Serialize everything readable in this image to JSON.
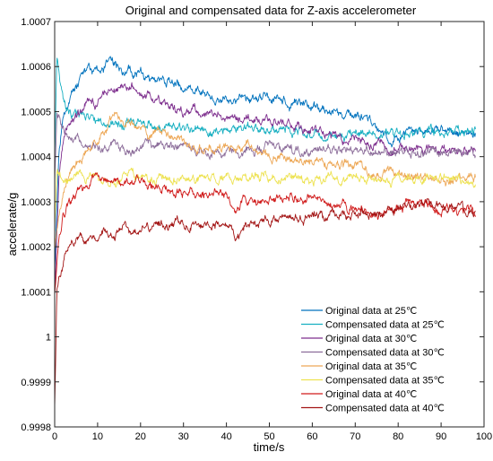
{
  "chart_data": {
    "type": "line",
    "title": "Original and compensated data for Z-axis accelerometer",
    "xlabel": "time/s",
    "ylabel": "accelerate/g",
    "xlim": [
      0,
      100
    ],
    "ylim": [
      0.9998,
      1.0007
    ],
    "xticks": [
      "0",
      "10",
      "20",
      "30",
      "40",
      "50",
      "60",
      "70",
      "80",
      "90",
      "100"
    ],
    "yticks": [
      "0.9998",
      "0.9999",
      "1",
      "1.0001",
      "1.0002",
      "1.0003",
      "1.0004",
      "1.0005",
      "1.0006",
      "1.0007"
    ],
    "grid": false,
    "legend_position": "bottom-right",
    "series": [
      {
        "name": "Original data at 25℃",
        "color": "#0072BD",
        "x": [
          0,
          1,
          2,
          3,
          4,
          6,
          8,
          10,
          12,
          14,
          16,
          18,
          20,
          22,
          25,
          28,
          30,
          35,
          40,
          45,
          50,
          55,
          60,
          65,
          70,
          75,
          78,
          80,
          85,
          90,
          95,
          98
        ],
        "y": [
          1.00015,
          1.00042,
          1.0005,
          1.00052,
          1.00054,
          1.00057,
          1.0006,
          1.00058,
          1.0006,
          1.00061,
          1.00058,
          1.00059,
          1.00058,
          1.00057,
          1.00057,
          1.00056,
          1.00055,
          1.00054,
          1.00053,
          1.00052,
          1.00053,
          1.00052,
          1.00051,
          1.0005,
          1.00049,
          1.00047,
          1.00044,
          1.00044,
          1.00046,
          1.00046,
          1.00045,
          1.00045
        ]
      },
      {
        "name": "Compensated data at 25℃",
        "color": "#17AFC1",
        "x": [
          0,
          0.5,
          1,
          1.5,
          2,
          3,
          4,
          5,
          6,
          8,
          10,
          12,
          14,
          16,
          18,
          20,
          25,
          30,
          35,
          40,
          45,
          50,
          55,
          60,
          65,
          70,
          75,
          80,
          85,
          90,
          95,
          98
        ],
        "y": [
          1.0004,
          1.00062,
          1.0006,
          1.00055,
          1.00052,
          1.0005,
          1.00049,
          1.00049,
          1.00049,
          1.00048,
          1.00048,
          1.00048,
          1.00047,
          1.00047,
          1.00048,
          1.00048,
          1.00047,
          1.00046,
          1.00046,
          1.00046,
          1.00046,
          1.00046,
          1.00046,
          1.00045,
          1.00045,
          1.00045,
          1.00045,
          1.00045,
          1.00046,
          1.00045,
          1.00045,
          1.00045
        ]
      },
      {
        "name": "Original data at 30℃",
        "color": "#7E2F8E",
        "x": [
          0,
          1,
          2,
          3,
          4,
          6,
          8,
          10,
          12,
          14,
          16,
          18,
          20,
          25,
          30,
          35,
          40,
          45,
          50,
          55,
          60,
          65,
          70,
          75,
          80,
          85,
          90,
          95,
          98
        ],
        "y": [
          1.0001,
          1.00035,
          1.00044,
          1.00046,
          1.00048,
          1.0005,
          1.00052,
          1.00052,
          1.00055,
          1.00055,
          1.00054,
          1.00055,
          1.00054,
          1.00052,
          1.0005,
          1.0005,
          1.00049,
          1.00048,
          1.00048,
          1.00047,
          1.00046,
          1.00045,
          1.00044,
          1.00043,
          1.00042,
          1.00042,
          1.00041,
          1.00041,
          1.00041
        ]
      },
      {
        "name": "Compensated data at 30℃",
        "color": "#8C6D9A",
        "x": [
          0,
          0.5,
          1,
          1.5,
          2,
          3,
          4,
          5,
          6,
          8,
          10,
          12,
          14,
          16,
          18,
          20,
          25,
          30,
          35,
          40,
          45,
          50,
          55,
          60,
          65,
          70,
          75,
          80,
          85,
          90,
          95,
          98
        ],
        "y": [
          1.00035,
          1.0005,
          1.00049,
          1.00047,
          1.00046,
          1.00045,
          1.00044,
          1.00044,
          1.00043,
          1.00042,
          1.00042,
          1.00042,
          1.00043,
          1.00042,
          1.00041,
          1.00042,
          1.00042,
          1.00042,
          1.00041,
          1.00041,
          1.00042,
          1.00042,
          1.00041,
          1.00042,
          1.00041,
          1.00041,
          1.00041,
          1.00041,
          1.00041,
          1.00041,
          1.00041,
          1.00041
        ]
      },
      {
        "name": "Original data at 35℃",
        "color": "#EDA857",
        "x": [
          0,
          1,
          2,
          3,
          4,
          6,
          8,
          10,
          12,
          14,
          16,
          18,
          20,
          22,
          25,
          28,
          30,
          35,
          40,
          45,
          50,
          55,
          60,
          65,
          70,
          75,
          80,
          85,
          90,
          95,
          98
        ],
        "y": [
          1.0002,
          1.00028,
          1.00032,
          1.00035,
          1.00037,
          1.00039,
          1.00042,
          1.00044,
          1.00046,
          1.0005,
          1.00048,
          1.00047,
          1.00047,
          1.00045,
          1.00046,
          1.00044,
          1.00044,
          1.00042,
          1.00042,
          1.00042,
          1.0004,
          1.0004,
          1.00039,
          1.00038,
          1.00038,
          1.00036,
          1.00036,
          1.00035,
          1.00035,
          1.00035,
          1.00036
        ]
      },
      {
        "name": "Compensated data at 35℃",
        "color": "#EDE251",
        "x": [
          0,
          0.5,
          1,
          1.5,
          2,
          3,
          4,
          5,
          6,
          8,
          10,
          12,
          14,
          16,
          18,
          20,
          25,
          30,
          35,
          40,
          45,
          50,
          55,
          60,
          65,
          70,
          75,
          80,
          85,
          90,
          95,
          98
        ],
        "y": [
          1.00025,
          1.00037,
          1.00036,
          1.00035,
          1.00034,
          1.00034,
          1.00035,
          1.00035,
          1.00036,
          1.00036,
          1.00036,
          1.00035,
          1.00035,
          1.00035,
          1.00036,
          1.00035,
          1.00035,
          1.00035,
          1.00035,
          1.00035,
          1.00036,
          1.00035,
          1.00035,
          1.00035,
          1.00035,
          1.00035,
          1.00035,
          1.00035,
          1.00035,
          1.00035,
          1.00035,
          1.00034
        ]
      },
      {
        "name": "Original data at 40℃",
        "color": "#D01A1A",
        "x": [
          0,
          1,
          2,
          3,
          4,
          5,
          6,
          8,
          10,
          12,
          14,
          16,
          18,
          20,
          22,
          25,
          30,
          35,
          40,
          42,
          44,
          46,
          50,
          55,
          60,
          65,
          70,
          75,
          80,
          85,
          90,
          95,
          98
        ],
        "y": [
          1.0001,
          1.00022,
          1.00027,
          1.00029,
          1.0003,
          1.00031,
          1.00032,
          1.00034,
          1.00036,
          1.00035,
          1.00034,
          1.00034,
          1.00035,
          1.00035,
          1.00034,
          1.00033,
          1.00032,
          1.00032,
          1.00032,
          1.00028,
          1.00031,
          1.0003,
          1.0003,
          1.00031,
          1.00031,
          1.00029,
          1.00029,
          1.00027,
          1.00029,
          1.0003,
          1.00028,
          1.00028,
          1.00028
        ]
      },
      {
        "name": "Compensated data at 40℃",
        "color": "#A31515",
        "x": [
          0,
          0.5,
          1,
          1.5,
          2,
          3,
          4,
          5,
          6,
          8,
          10,
          12,
          14,
          16,
          18,
          20,
          22,
          25,
          28,
          30,
          35,
          40,
          42,
          45,
          50,
          55,
          60,
          65,
          70,
          75,
          80,
          85,
          90,
          95,
          98
        ],
        "y": [
          0.99985,
          1.0001,
          1.00013,
          1.00015,
          1.00017,
          1.0002,
          1.00021,
          1.00022,
          1.00022,
          1.00022,
          1.00022,
          1.00023,
          1.00023,
          1.00024,
          1.00024,
          1.00024,
          1.00024,
          1.00025,
          1.00025,
          1.00025,
          1.00025,
          1.00026,
          1.00022,
          1.00025,
          1.00026,
          1.00027,
          1.00027,
          1.00027,
          1.00027,
          1.00028,
          1.00028,
          1.00029,
          1.00029,
          1.00028,
          1.00028
        ]
      }
    ]
  }
}
